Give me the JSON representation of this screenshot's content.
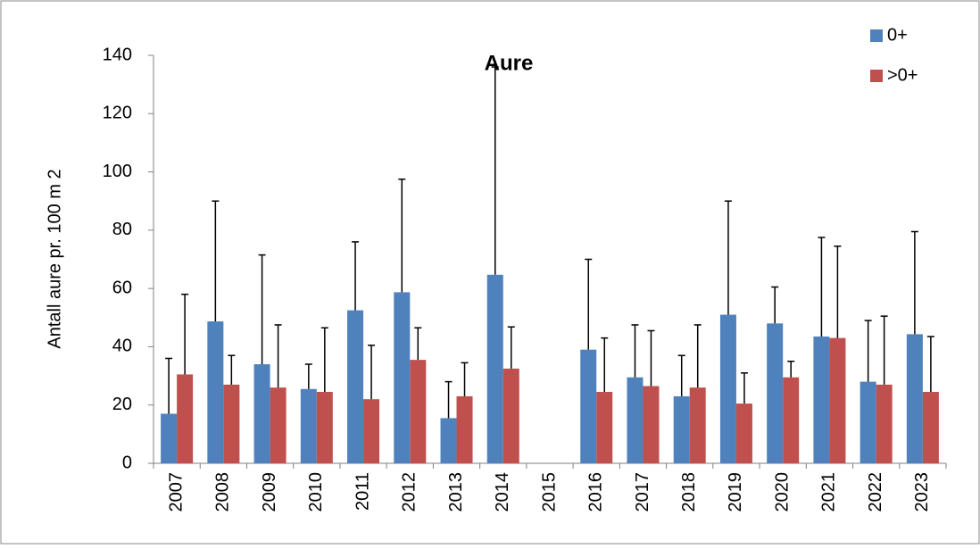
{
  "chart_data": {
    "type": "bar",
    "title": "Aure",
    "y_label": "Antall aure pr. 100 m 2",
    "categories": [
      "2007",
      "2008",
      "2009",
      "2010",
      "2011",
      "2012",
      "2013",
      "2014",
      "2015",
      "2016",
      "2017",
      "2018",
      "2019",
      "2020",
      "2021",
      "2022",
      "2023"
    ],
    "series": [
      {
        "name": "0+",
        "color": "#4f81bd",
        "values": [
          17,
          48.7,
          34,
          25.5,
          52.5,
          58.7,
          15.5,
          64.7,
          null,
          39,
          29.5,
          23,
          51,
          48,
          43.5,
          28,
          44.3
        ],
        "errors": [
          19,
          41.3,
          37.5,
          8.5,
          23.5,
          38.8,
          12.5,
          71.3,
          null,
          31,
          18,
          14,
          39,
          12.5,
          34,
          21,
          35.2
        ]
      },
      {
        "name": ">0+",
        "color": "#c0504d",
        "values": [
          30.5,
          27,
          26,
          24.5,
          22,
          35.5,
          23,
          32.5,
          null,
          24.5,
          26.5,
          26,
          20.5,
          29.5,
          43,
          27,
          24.5
        ],
        "errors": [
          27.5,
          10,
          21.5,
          22,
          18.5,
          11,
          11.5,
          14.3,
          null,
          18.5,
          19,
          21.5,
          10.5,
          5.5,
          31.5,
          23.5,
          19
        ]
      }
    ],
    "ylim": [
      0,
      140
    ],
    "yticks": [
      0,
      20,
      40,
      60,
      80,
      100,
      120,
      140
    ],
    "legend": "top-right"
  }
}
